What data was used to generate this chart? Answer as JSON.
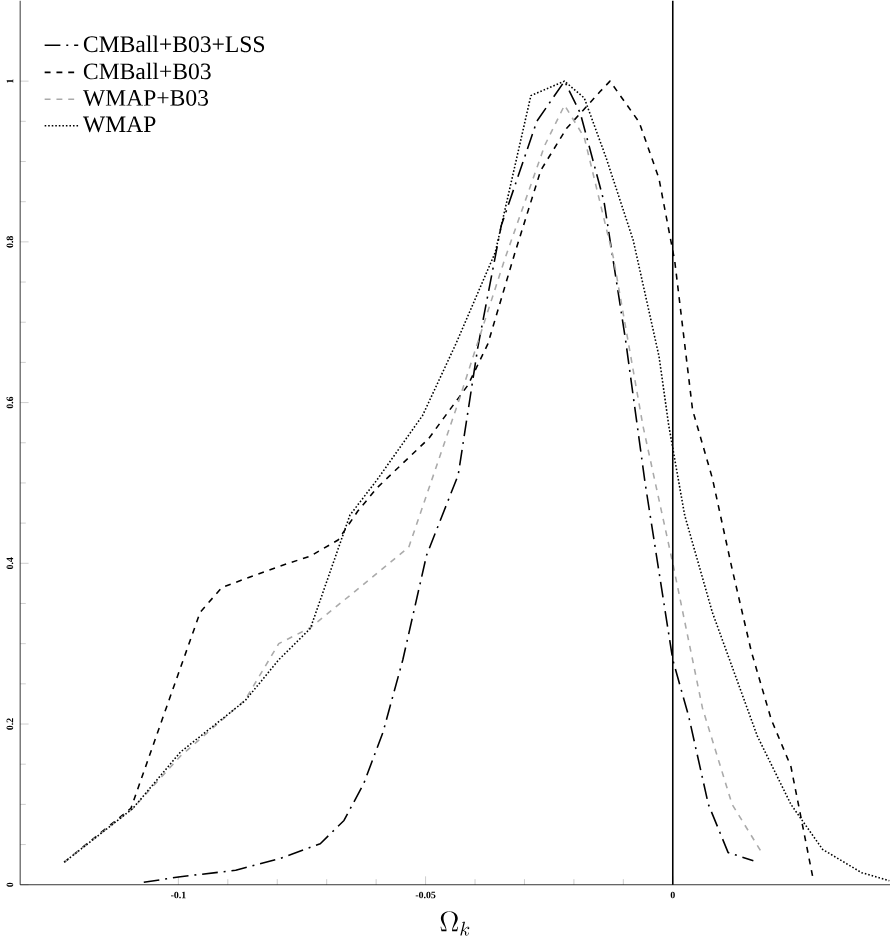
{
  "chart_data": {
    "type": "line",
    "xlabel": "\\Omega_k",
    "xlim": [
      -0.132,
      0.044
    ],
    "ylim": [
      0,
      1.1
    ],
    "xticks": [
      -0.1,
      -0.05,
      0
    ],
    "yticks": [
      0,
      0.2,
      0.4,
      0.6,
      0.8,
      1
    ],
    "legend": "top left",
    "grid": false,
    "ref_lines": [
      {
        "axis": "x",
        "value": 0,
        "color": "#000000",
        "line_style": "solid"
      }
    ],
    "series": [
      {
        "name": "CMBall+B03+LSS",
        "color": "#000000",
        "line_style": "dashdot",
        "x": [
          -0.107,
          -0.0996,
          -0.0884,
          -0.0793,
          -0.0713,
          -0.0665,
          -0.0625,
          -0.0586,
          -0.0546,
          -0.0498,
          -0.0434,
          -0.0394,
          -0.0347,
          -0.0275,
          -0.0219,
          -0.0187,
          -0.0139,
          -0.0096,
          -0.0056,
          -0.0028,
          0.0,
          0.0032,
          0.0072,
          0.0112,
          0.0163
        ],
        "values": [
          0.003,
          0.01,
          0.018,
          0.033,
          0.051,
          0.08,
          0.126,
          0.19,
          0.28,
          0.41,
          0.51,
          0.67,
          0.82,
          0.95,
          1.0,
          0.96,
          0.85,
          0.68,
          0.5,
          0.39,
          0.28,
          0.21,
          0.1,
          0.04,
          0.03
        ]
      },
      {
        "name": "CMBall+B03",
        "color": "#000000",
        "line_style": "dashed",
        "x": [
          -0.1231,
          -0.1096,
          -0.1024,
          -0.0956,
          -0.0912,
          -0.0797,
          -0.0733,
          -0.0677,
          -0.0637,
          -0.0598,
          -0.0494,
          -0.0414,
          -0.0374,
          -0.0319,
          -0.0267,
          -0.0215,
          -0.0147,
          -0.0127,
          -0.0068,
          -0.0028,
          0.0004,
          0.004,
          0.008,
          0.012,
          0.0159,
          0.0199,
          0.0239,
          0.0283
        ],
        "values": [
          0.028,
          0.095,
          0.221,
          0.339,
          0.37,
          0.396,
          0.409,
          0.429,
          0.465,
          0.494,
          0.555,
          0.622,
          0.673,
          0.787,
          0.889,
          0.941,
          0.987,
          1.0,
          0.949,
          0.879,
          0.776,
          0.591,
          0.506,
          0.393,
          0.29,
          0.206,
          0.147,
          0.01
        ]
      },
      {
        "name": "WMAP+B03",
        "color": "#aaaaaa",
        "line_style": "dashed",
        "x": [
          -0.1231,
          -0.1092,
          -0.0996,
          -0.0865,
          -0.0797,
          -0.0733,
          -0.0653,
          -0.0534,
          -0.0434,
          -0.0339,
          -0.0259,
          -0.0219,
          -0.0179,
          -0.012,
          -0.006,
          0.0,
          0.006,
          0.012,
          0.018
        ],
        "values": [
          0.028,
          0.095,
          0.16,
          0.23,
          0.3,
          0.32,
          0.36,
          0.42,
          0.6,
          0.78,
          0.92,
          0.97,
          0.93,
          0.78,
          0.57,
          0.4,
          0.22,
          0.1,
          0.04
        ]
      },
      {
        "name": "WMAP",
        "color": "#000000",
        "line_style": "dotted",
        "x": [
          -0.1231,
          -0.1092,
          -0.0996,
          -0.0865,
          -0.0797,
          -0.0733,
          -0.0653,
          -0.0598,
          -0.0506,
          -0.0438,
          -0.0359,
          -0.0287,
          -0.0219,
          -0.0179,
          -0.0135,
          -0.008,
          -0.0028,
          -0.0008,
          0.0024,
          0.008,
          0.0171,
          0.0239,
          0.0303,
          0.0382,
          0.0438
        ],
        "values": [
          0.028,
          0.095,
          0.165,
          0.229,
          0.28,
          0.319,
          0.46,
          0.504,
          0.584,
          0.674,
          0.787,
          0.982,
          1.0,
          0.979,
          0.905,
          0.802,
          0.658,
          0.571,
          0.46,
          0.339,
          0.185,
          0.1,
          0.044,
          0.015,
          0.005
        ]
      }
    ]
  }
}
